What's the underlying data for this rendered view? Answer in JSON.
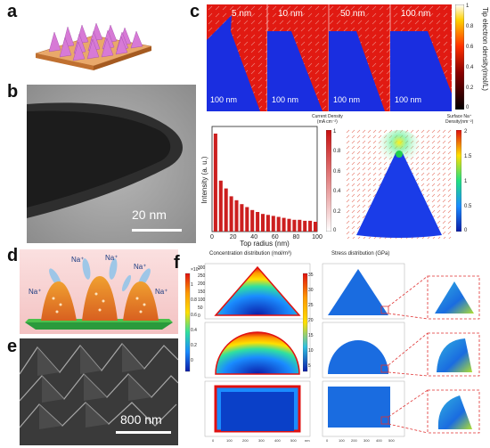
{
  "panels": {
    "a": "a",
    "b": "b",
    "c": "c",
    "d": "d",
    "e": "e",
    "f": "f"
  },
  "tem_scale": "20 nm",
  "sem_scale": "800 nm",
  "panel_c": {
    "sim_labels": [
      "5 nm",
      "10 nm",
      "50 nm",
      "100 nm"
    ],
    "sim_scale": "100 nm",
    "colorbar_title": "Tip electron density(mol/L)",
    "colorbar_ticks": [
      "1",
      "0.8",
      "0.6",
      "0.4",
      "0.2",
      "0"
    ],
    "current_density_label": "Current Density\n(mA cm⁻²)",
    "current_ticks": [
      "1",
      "0.8",
      "0.6",
      "0.4",
      "0.2",
      "0"
    ],
    "surface_na_label": "Surface Na⁺\nDensity(nm⁻²)",
    "surface_ticks": [
      "2",
      "1.5",
      "1",
      "0.5",
      "0"
    ]
  },
  "panel_d": {
    "ions": [
      "Na⁺",
      "Na⁺",
      "Na⁺",
      "Na⁺",
      "Na⁺"
    ]
  },
  "panel_f": {
    "concentration_title": "Concentration distribution (mol/m³)",
    "stress_title": "Stress distribution (GPa)",
    "conc_ticks": [
      "×10⁴",
      "1",
      "0.8",
      "0.6",
      "0.4",
      "0.2",
      "0"
    ],
    "stress_ticks": [
      "35",
      "30",
      "25",
      "20",
      "15",
      "10",
      "5"
    ],
    "axis_nm": "nm",
    "y_ticks": [
      "300",
      "250",
      "200",
      "150",
      "100",
      "50",
      "0"
    ],
    "x_ticks": [
      "0",
      "100",
      "200",
      "300",
      "400",
      "500"
    ]
  },
  "chart_data": {
    "type": "bar",
    "title": "",
    "xlabel": "Top radius (nm)",
    "ylabel": "Intensity (a. u.)",
    "xticks": [
      "0",
      "20",
      "40",
      "60",
      "80",
      "100"
    ],
    "xlim": [
      0,
      100
    ],
    "categories": [
      5,
      10,
      15,
      20,
      25,
      30,
      35,
      40,
      45,
      50,
      55,
      60,
      65,
      70,
      75,
      80,
      85,
      90,
      95,
      100
    ],
    "values": [
      1.0,
      0.52,
      0.44,
      0.36,
      0.32,
      0.28,
      0.25,
      0.22,
      0.2,
      0.18,
      0.17,
      0.16,
      0.15,
      0.14,
      0.13,
      0.12,
      0.12,
      0.11,
      0.11,
      0.1
    ],
    "color": "#cc1f1f"
  }
}
